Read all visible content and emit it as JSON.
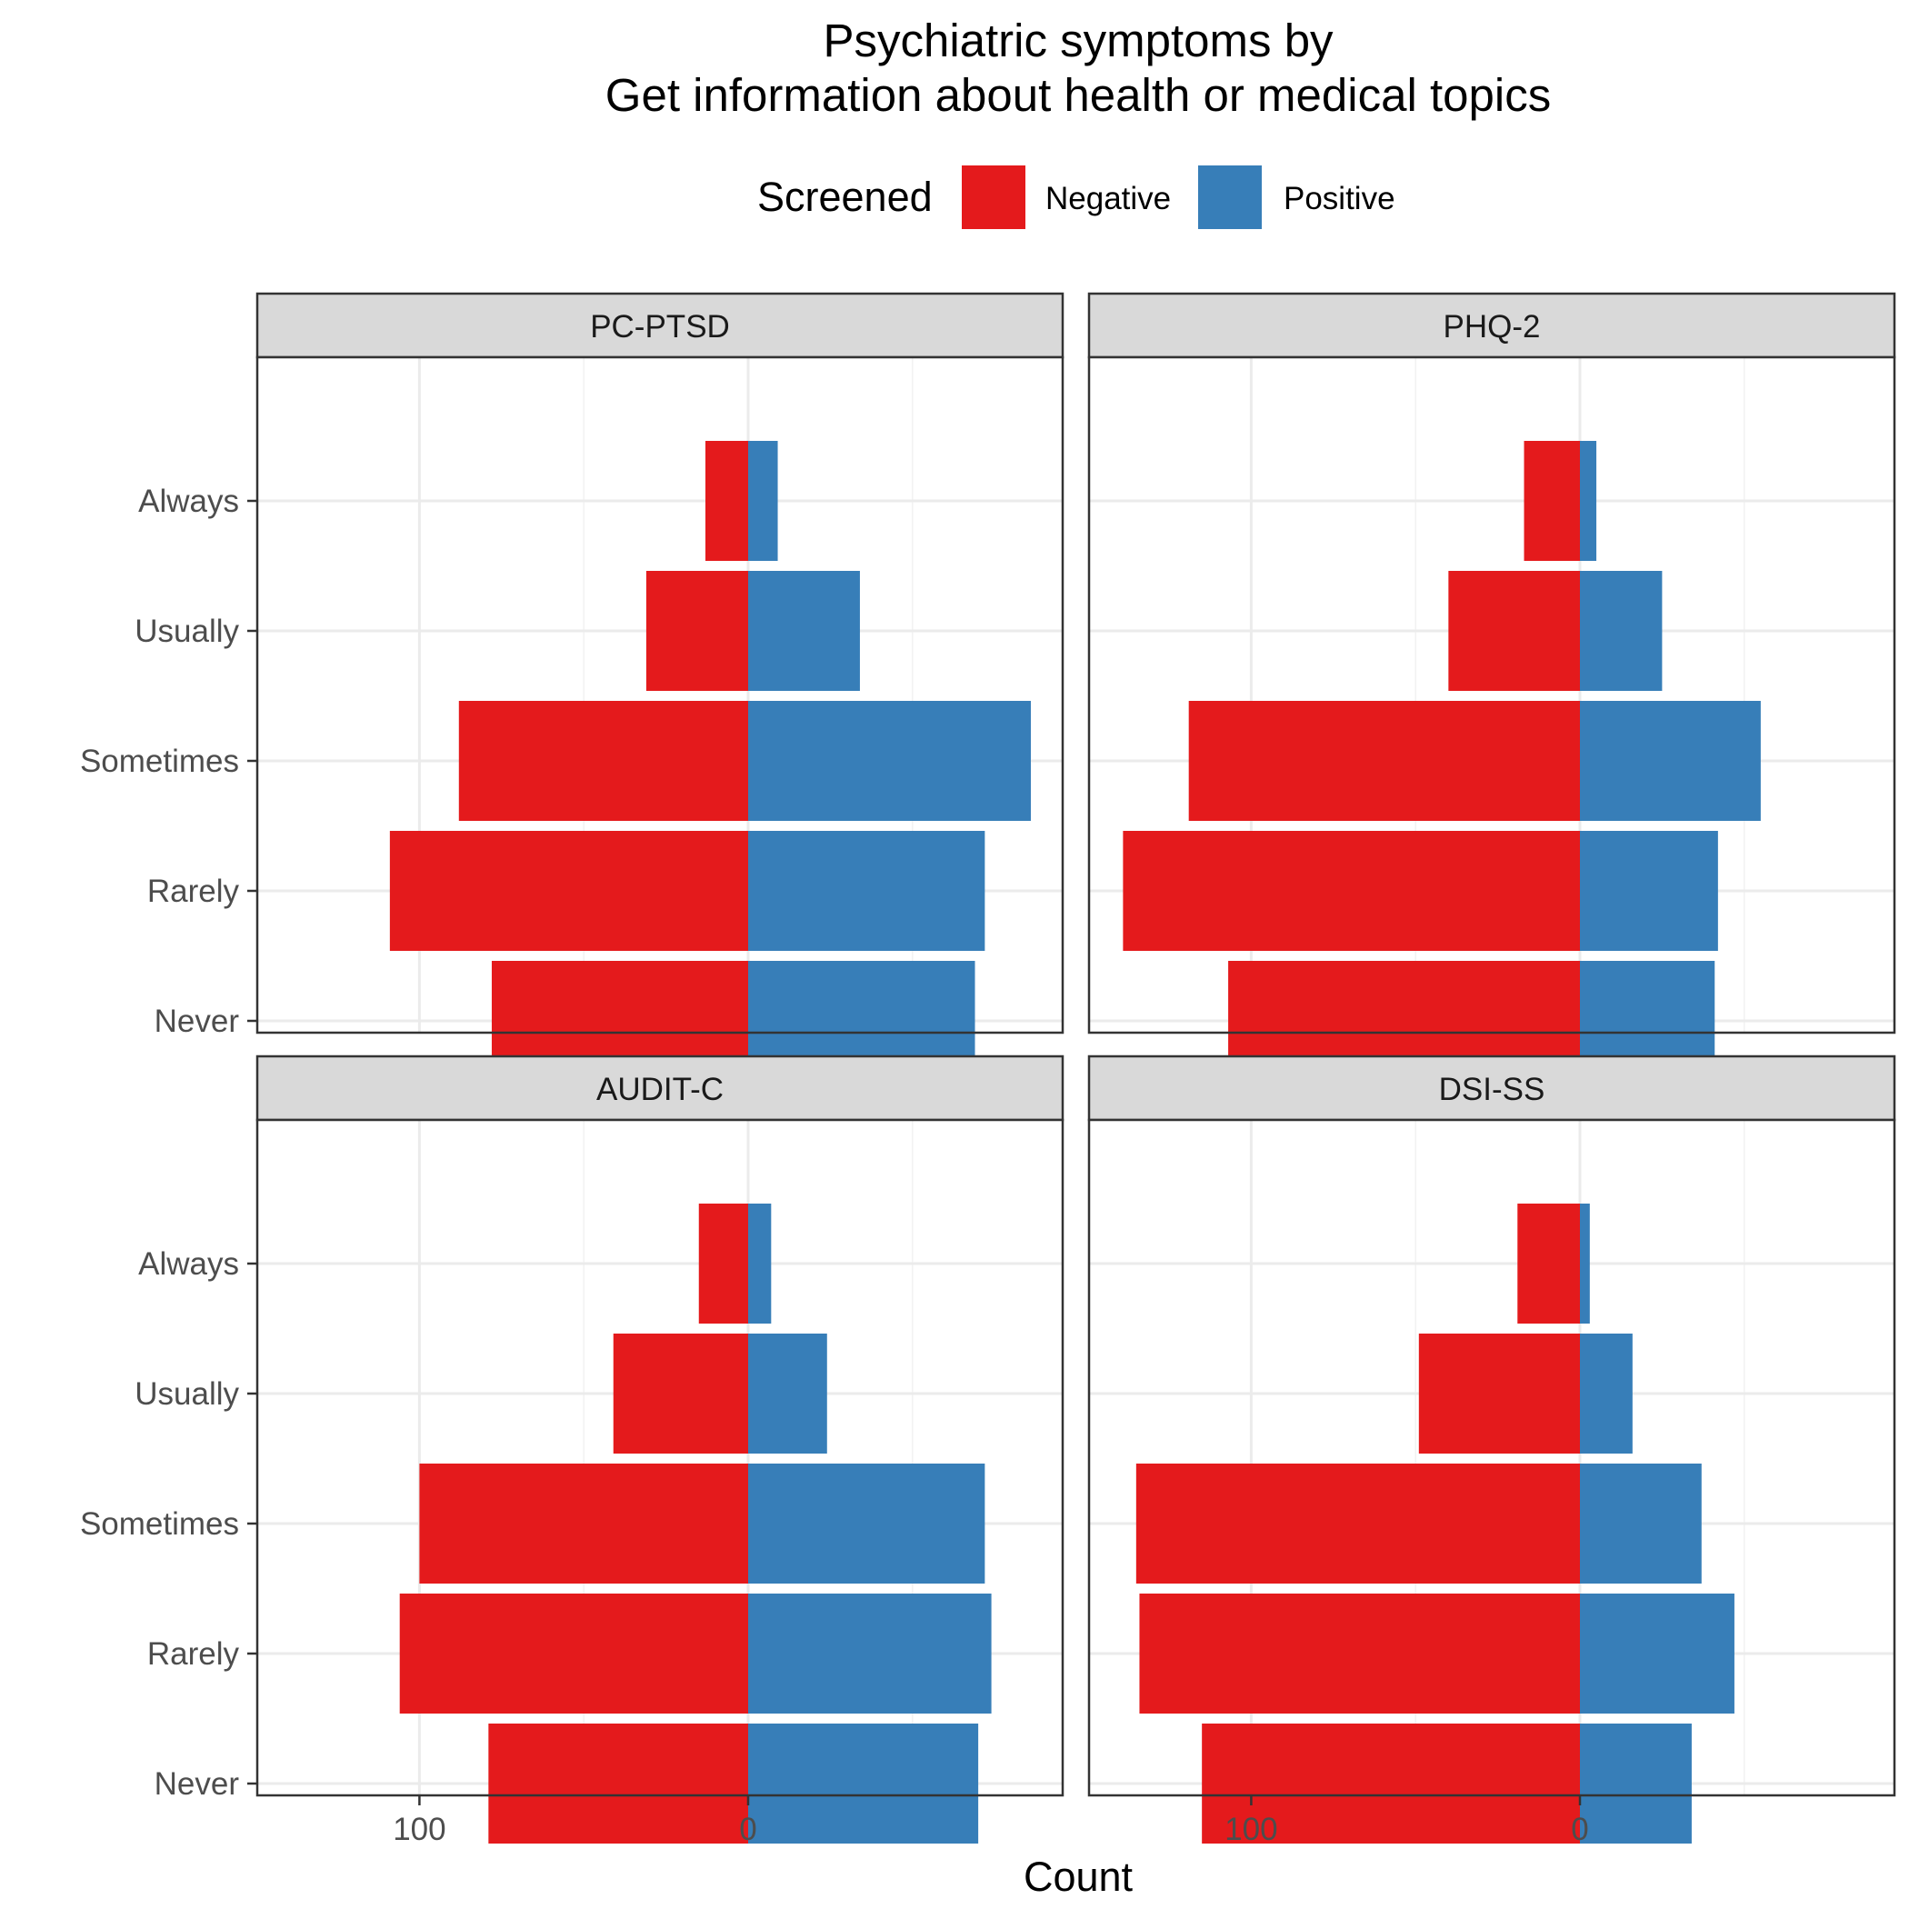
{
  "chart_data": {
    "type": "bar",
    "orientation": "horizontal-diverging",
    "title_lines": [
      "Psychiatric symptoms by",
      "Get information about health or medical topics"
    ],
    "xlabel": "Count",
    "ylabel": "",
    "legend": {
      "title": "Screened",
      "position": "top",
      "entries": [
        {
          "name": "Negative",
          "color": "#E41A1C"
        },
        {
          "name": "Positive",
          "color": "#377EB8"
        }
      ]
    },
    "categories": [
      "Always",
      "Usually",
      "Sometimes",
      "Rarely",
      "Never"
    ],
    "x_ticks": [
      {
        "value": -100,
        "label": "100"
      },
      {
        "value": 0,
        "label": "0"
      }
    ],
    "xlim": [
      -150,
      95
    ],
    "grid": true,
    "panels": [
      {
        "name": "PC-PTSD",
        "series": [
          {
            "name": "Negative",
            "values": [
              13,
              31,
              88,
              109,
              78
            ]
          },
          {
            "name": "Positive",
            "values": [
              9,
              34,
              86,
              72,
              69
            ]
          }
        ]
      },
      {
        "name": "PHQ-2",
        "series": [
          {
            "name": "Negative",
            "values": [
              17,
              40,
              119,
              139,
              107
            ]
          },
          {
            "name": "Positive",
            "values": [
              5,
              25,
              55,
              42,
              41
            ]
          }
        ]
      },
      {
        "name": "AUDIT-C",
        "series": [
          {
            "name": "Negative",
            "values": [
              15,
              41,
              100,
              106,
              79
            ]
          },
          {
            "name": "Positive",
            "values": [
              7,
              24,
              72,
              74,
              70
            ]
          }
        ]
      },
      {
        "name": "DSI-SS",
        "series": [
          {
            "name": "Negative",
            "values": [
              19,
              49,
              135,
              134,
              115
            ]
          },
          {
            "name": "Positive",
            "values": [
              3,
              16,
              37,
              47,
              34
            ]
          }
        ]
      }
    ]
  }
}
